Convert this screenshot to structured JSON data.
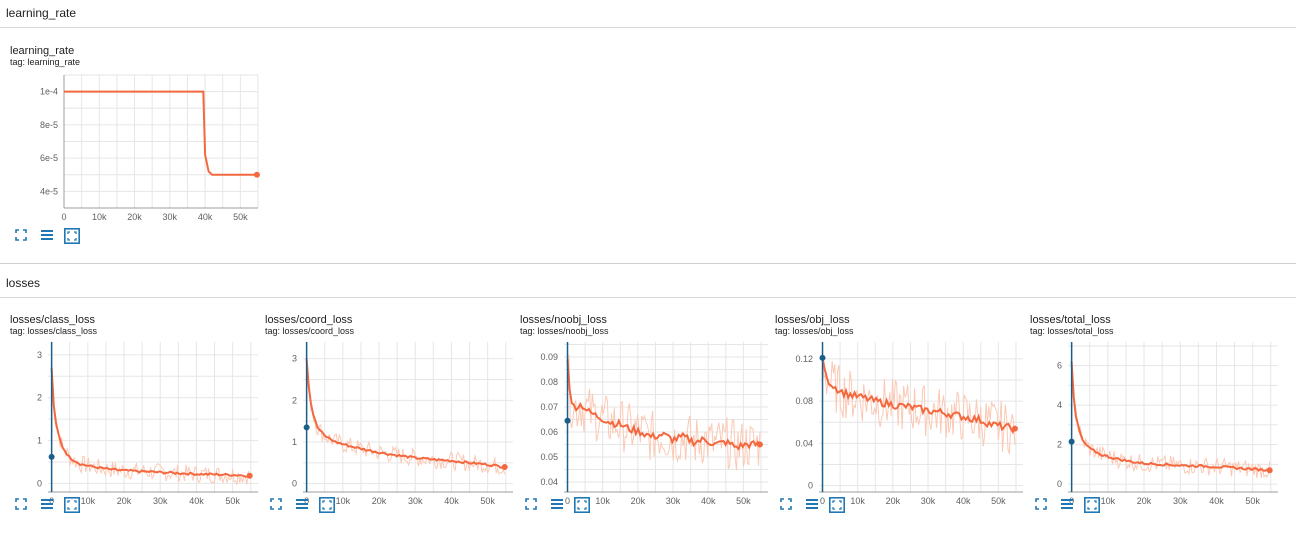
{
  "sections": {
    "learning_rate": {
      "title": "learning_rate"
    },
    "losses": {
      "title": "losses"
    }
  },
  "icons": {
    "fullscreen": "fullscreen-icon",
    "log_scale": "list-icon",
    "fit_domain": "fit-domain-icon"
  },
  "colors": {
    "series": "#f4683f",
    "series_light": "#fbc9b5",
    "marker": "#1a5f8a",
    "grid": "#e6e6e6",
    "icon_blue": "#1f77b4"
  },
  "cards": [
    {
      "title": "learning_rate",
      "tag": "tag: learning_rate",
      "chart_data": {
        "type": "line",
        "x_ticks": [
          "0",
          "10k",
          "20k",
          "30k",
          "40k",
          "50k"
        ],
        "y_ticks": [
          "1e-4",
          "8e-5",
          "6e-5",
          "4e-5"
        ],
        "xlim": [
          0,
          55000
        ],
        "ylim": [
          3e-05,
          0.00011
        ],
        "ytick_values": [
          0.0001,
          8e-05,
          6e-05,
          4e-05
        ],
        "series": [
          {
            "x": [
              0,
              39500,
              40000,
              41000,
              42000,
              44000,
              54700
            ],
            "y": [
              0.0001,
              0.0001,
              6.2e-05,
              5.2e-05,
              5e-05,
              5e-05,
              5e-05
            ]
          }
        ]
      }
    },
    {
      "title": "losses/class_loss",
      "tag": "tag: losses/class_loss",
      "chart_data": {
        "type": "line",
        "x_ticks": [
          "0",
          "10k",
          "20k",
          "30k",
          "40k",
          "50k"
        ],
        "y_ticks": [
          "3",
          "2",
          "1",
          "0"
        ],
        "xlim": [
          -1000,
          57000
        ],
        "ylim": [
          -0.2,
          3.3
        ],
        "ytick_values": [
          3,
          2,
          1,
          0
        ],
        "marker": {
          "x": 0,
          "y": 0.62
        },
        "series": [
          {
            "x": [
              0,
              500,
              1000,
              2000,
              3000,
              5000,
              8000,
              12000,
              16000,
              20000,
              25000,
              30000,
              35000,
              40000,
              45000,
              50000,
              54700
            ],
            "y": [
              2.7,
              1.9,
              1.5,
              1.1,
              0.85,
              0.6,
              0.45,
              0.38,
              0.33,
              0.3,
              0.28,
              0.26,
              0.24,
              0.22,
              0.21,
              0.2,
              0.18
            ]
          }
        ]
      }
    },
    {
      "title": "losses/coord_loss",
      "tag": "tag: losses/coord_loss",
      "chart_data": {
        "type": "line",
        "x_ticks": [
          "0",
          "10k",
          "20k",
          "30k",
          "40k",
          "50k"
        ],
        "y_ticks": [
          "3",
          "2",
          "1",
          "0"
        ],
        "xlim": [
          -1000,
          57000
        ],
        "ylim": [
          -0.2,
          3.4
        ],
        "ytick_values": [
          3,
          2,
          1,
          0
        ],
        "marker": {
          "x": 0,
          "y": 1.35
        },
        "series": [
          {
            "x": [
              0,
              500,
              1000,
              2000,
              3000,
              5000,
              8000,
              12000,
              16000,
              20000,
              25000,
              30000,
              35000,
              40000,
              45000,
              50000,
              54700
            ],
            "y": [
              3.0,
              2.4,
              2.0,
              1.6,
              1.35,
              1.15,
              1.0,
              0.9,
              0.82,
              0.75,
              0.68,
              0.62,
              0.58,
              0.55,
              0.5,
              0.46,
              0.4
            ]
          }
        ]
      }
    },
    {
      "title": "losses/noobj_loss",
      "tag": "tag: losses/noobj_loss",
      "chart_data": {
        "type": "line",
        "x_ticks": [
          "0",
          "10k",
          "20k",
          "30k",
          "40k",
          "50k"
        ],
        "y_ticks": [
          "0.09",
          "0.08",
          "0.07",
          "0.06",
          "0.05",
          "0.04"
        ],
        "xlim": [
          -1000,
          57000
        ],
        "ylim": [
          0.036,
          0.096
        ],
        "ytick_values": [
          0.09,
          0.08,
          0.07,
          0.06,
          0.05,
          0.04
        ],
        "marker": {
          "x": 0,
          "y": 0.0645
        },
        "series": [
          {
            "x": [
              0,
              500,
              1000,
              2000,
              4000,
              6000,
              9000,
              12000,
              15000,
              18000,
              21000,
              24000,
              27000,
              30000,
              33000,
              36000,
              39000,
              42000,
              45000,
              48000,
              51000,
              54700
            ],
            "y": [
              0.089,
              0.078,
              0.072,
              0.07,
              0.071,
              0.068,
              0.066,
              0.064,
              0.063,
              0.061,
              0.06,
              0.058,
              0.059,
              0.057,
              0.058,
              0.056,
              0.057,
              0.055,
              0.056,
              0.054,
              0.055,
              0.055
            ]
          }
        ]
      }
    },
    {
      "title": "losses/obj_loss",
      "tag": "tag: losses/obj_loss",
      "chart_data": {
        "type": "line",
        "x_ticks": [
          "0",
          "10k",
          "20k",
          "30k",
          "40k",
          "50k"
        ],
        "y_ticks": [
          "0.12",
          "0.08",
          "0.04",
          "0"
        ],
        "xlim": [
          -1000,
          57000
        ],
        "ylim": [
          -0.006,
          0.136
        ],
        "ytick_values": [
          0.12,
          0.08,
          0.04,
          0
        ],
        "marker": {
          "x": 0,
          "y": 0.121
        },
        "series": [
          {
            "x": [
              0,
              500,
              1000,
              2000,
              4000,
              6000,
              9000,
              12000,
              15000,
              18000,
              21000,
              24000,
              27000,
              30000,
              33000,
              36000,
              39000,
              42000,
              45000,
              48000,
              51000,
              54700
            ],
            "y": [
              0.121,
              0.112,
              0.104,
              0.098,
              0.092,
              0.088,
              0.085,
              0.083,
              0.08,
              0.078,
              0.076,
              0.075,
              0.073,
              0.071,
              0.07,
              0.068,
              0.066,
              0.064,
              0.062,
              0.058,
              0.056,
              0.054
            ]
          }
        ]
      }
    },
    {
      "title": "losses/total_loss",
      "tag": "tag: losses/total_loss",
      "chart_data": {
        "type": "line",
        "x_ticks": [
          "0",
          "10k",
          "20k",
          "30k",
          "40k",
          "50k"
        ],
        "y_ticks": [
          "6",
          "4",
          "2",
          "0"
        ],
        "xlim": [
          -1000,
          57000
        ],
        "ylim": [
          -0.4,
          7.2
        ],
        "ytick_values": [
          6,
          4,
          2,
          0
        ],
        "marker": {
          "x": 0,
          "y": 2.15
        },
        "series": [
          {
            "x": [
              0,
              500,
              1000,
              2000,
              3000,
              5000,
              8000,
              12000,
              16000,
              20000,
              25000,
              30000,
              35000,
              40000,
              45000,
              50000,
              54700
            ],
            "y": [
              6.2,
              4.6,
              3.6,
              2.8,
              2.2,
              1.8,
              1.5,
              1.3,
              1.15,
              1.05,
              1.0,
              0.95,
              0.92,
              0.88,
              0.82,
              0.76,
              0.7
            ]
          }
        ]
      }
    }
  ]
}
